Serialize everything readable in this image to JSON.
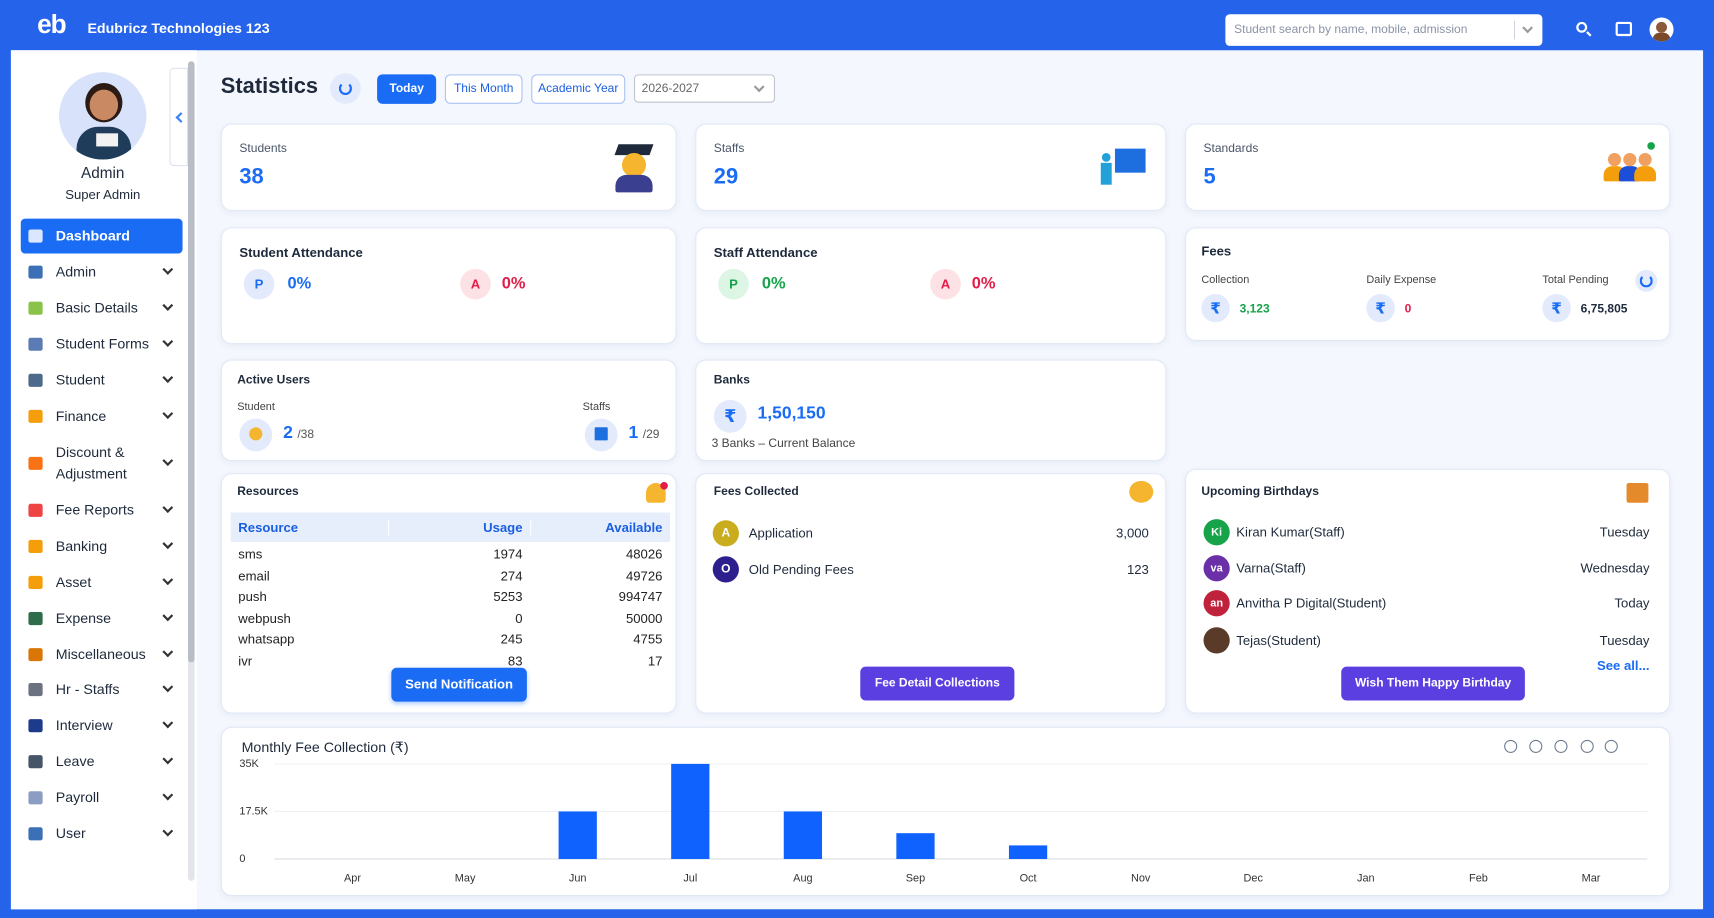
{
  "header": {
    "logo": "eb",
    "company": "Edubricz Technologies 123",
    "search_placeholder": "Student search by name, mobile, admission"
  },
  "sidebar": {
    "name": "Admin",
    "role": "Super Admin",
    "menu": [
      "Dashboard",
      "Admin",
      "Basic Details",
      "Student Forms",
      "Student",
      "Finance",
      "Discount & Adjustment",
      "Fee Reports",
      "Banking",
      "Asset",
      "Expense",
      "Miscellaneous",
      "Hr - Staffs",
      "Interview",
      "Leave",
      "Payroll",
      "User"
    ]
  },
  "toolbar": {
    "title": "Statistics",
    "filters": [
      "Today",
      "This Month",
      "Academic Year"
    ],
    "academic_year": "2026-2027"
  },
  "summary": [
    {
      "label": "Students",
      "value": 38
    },
    {
      "label": "Staffs",
      "value": 29
    },
    {
      "label": "Standards",
      "value": 5
    }
  ],
  "student_attendance": {
    "title": "Student Attendance",
    "present_badge": "P",
    "present": "0%",
    "absent_badge": "A",
    "absent": "0%"
  },
  "staff_attendance": {
    "title": "Staff Attendance",
    "present_badge": "P",
    "present": "0%",
    "absent_badge": "A",
    "absent": "0%"
  },
  "fees": {
    "title": "Fees",
    "currency": "₹",
    "items": [
      {
        "label": "Collection",
        "value": "3,123"
      },
      {
        "label": "Daily Expense",
        "value": "0"
      },
      {
        "label": "Total Pending",
        "value": "6,75,805"
      }
    ]
  },
  "active_users": {
    "title": "Active Users",
    "groups": [
      {
        "label": "Student",
        "count": "2",
        "total": "/38"
      },
      {
        "label": "Staffs",
        "count": "1",
        "total": "/29"
      }
    ]
  },
  "banks": {
    "title": "Banks",
    "amount": "1,50,150",
    "note": "3 Banks – Current Balance"
  },
  "resources": {
    "title": "Resources",
    "columns": [
      "Resource",
      "Usage",
      "Available"
    ],
    "rows": [
      [
        "sms",
        1974,
        48026
      ],
      [
        "email",
        274,
        49726
      ],
      [
        "push",
        5253,
        994747
      ],
      [
        "webpush",
        0,
        50000
      ],
      [
        "whatsapp",
        245,
        4755
      ],
      [
        "ivr",
        83,
        17
      ]
    ],
    "button": "Send Notification"
  },
  "fees_collected": {
    "title": "Fees Collected",
    "items": [
      {
        "badge": "A",
        "name": "Application",
        "amount": "3,000"
      },
      {
        "badge": "O",
        "name": "Old Pending Fees",
        "amount": "123"
      }
    ],
    "button": "Fee Detail Collections"
  },
  "birthdays": {
    "title": "Upcoming Birthdays",
    "items": [
      {
        "badge": "Ki",
        "name": "Kiran Kumar(Staff)",
        "day": "Tuesday"
      },
      {
        "badge": "va",
        "name": "Varna(Staff)",
        "day": "Wednesday"
      },
      {
        "badge": "an",
        "name": "Anvitha P Digital(Student)",
        "day": "Today"
      },
      {
        "name": "Tejas(Student)",
        "day": "Tuesday"
      }
    ],
    "see_all": "See all...",
    "button": "Wish Them Happy Birthday"
  },
  "chart_data": {
    "type": "bar",
    "title": "Monthly Fee Collection (₹)",
    "color": "#0f62fe",
    "categories": [
      "Apr",
      "May",
      "Jun",
      "Jul",
      "Aug",
      "Sep",
      "Oct",
      "Nov",
      "Dec",
      "Jan",
      "Feb",
      "Mar"
    ],
    "values": [
      0,
      0,
      17500,
      35000,
      17500,
      9500,
      5000,
      0,
      0,
      0,
      0,
      0
    ],
    "ylim": [
      0,
      35000
    ],
    "yticks": [
      0,
      {
        "value": 17500,
        "label": "17.5K"
      },
      {
        "value": 35000,
        "label": "35K"
      }
    ],
    "grid": true
  }
}
